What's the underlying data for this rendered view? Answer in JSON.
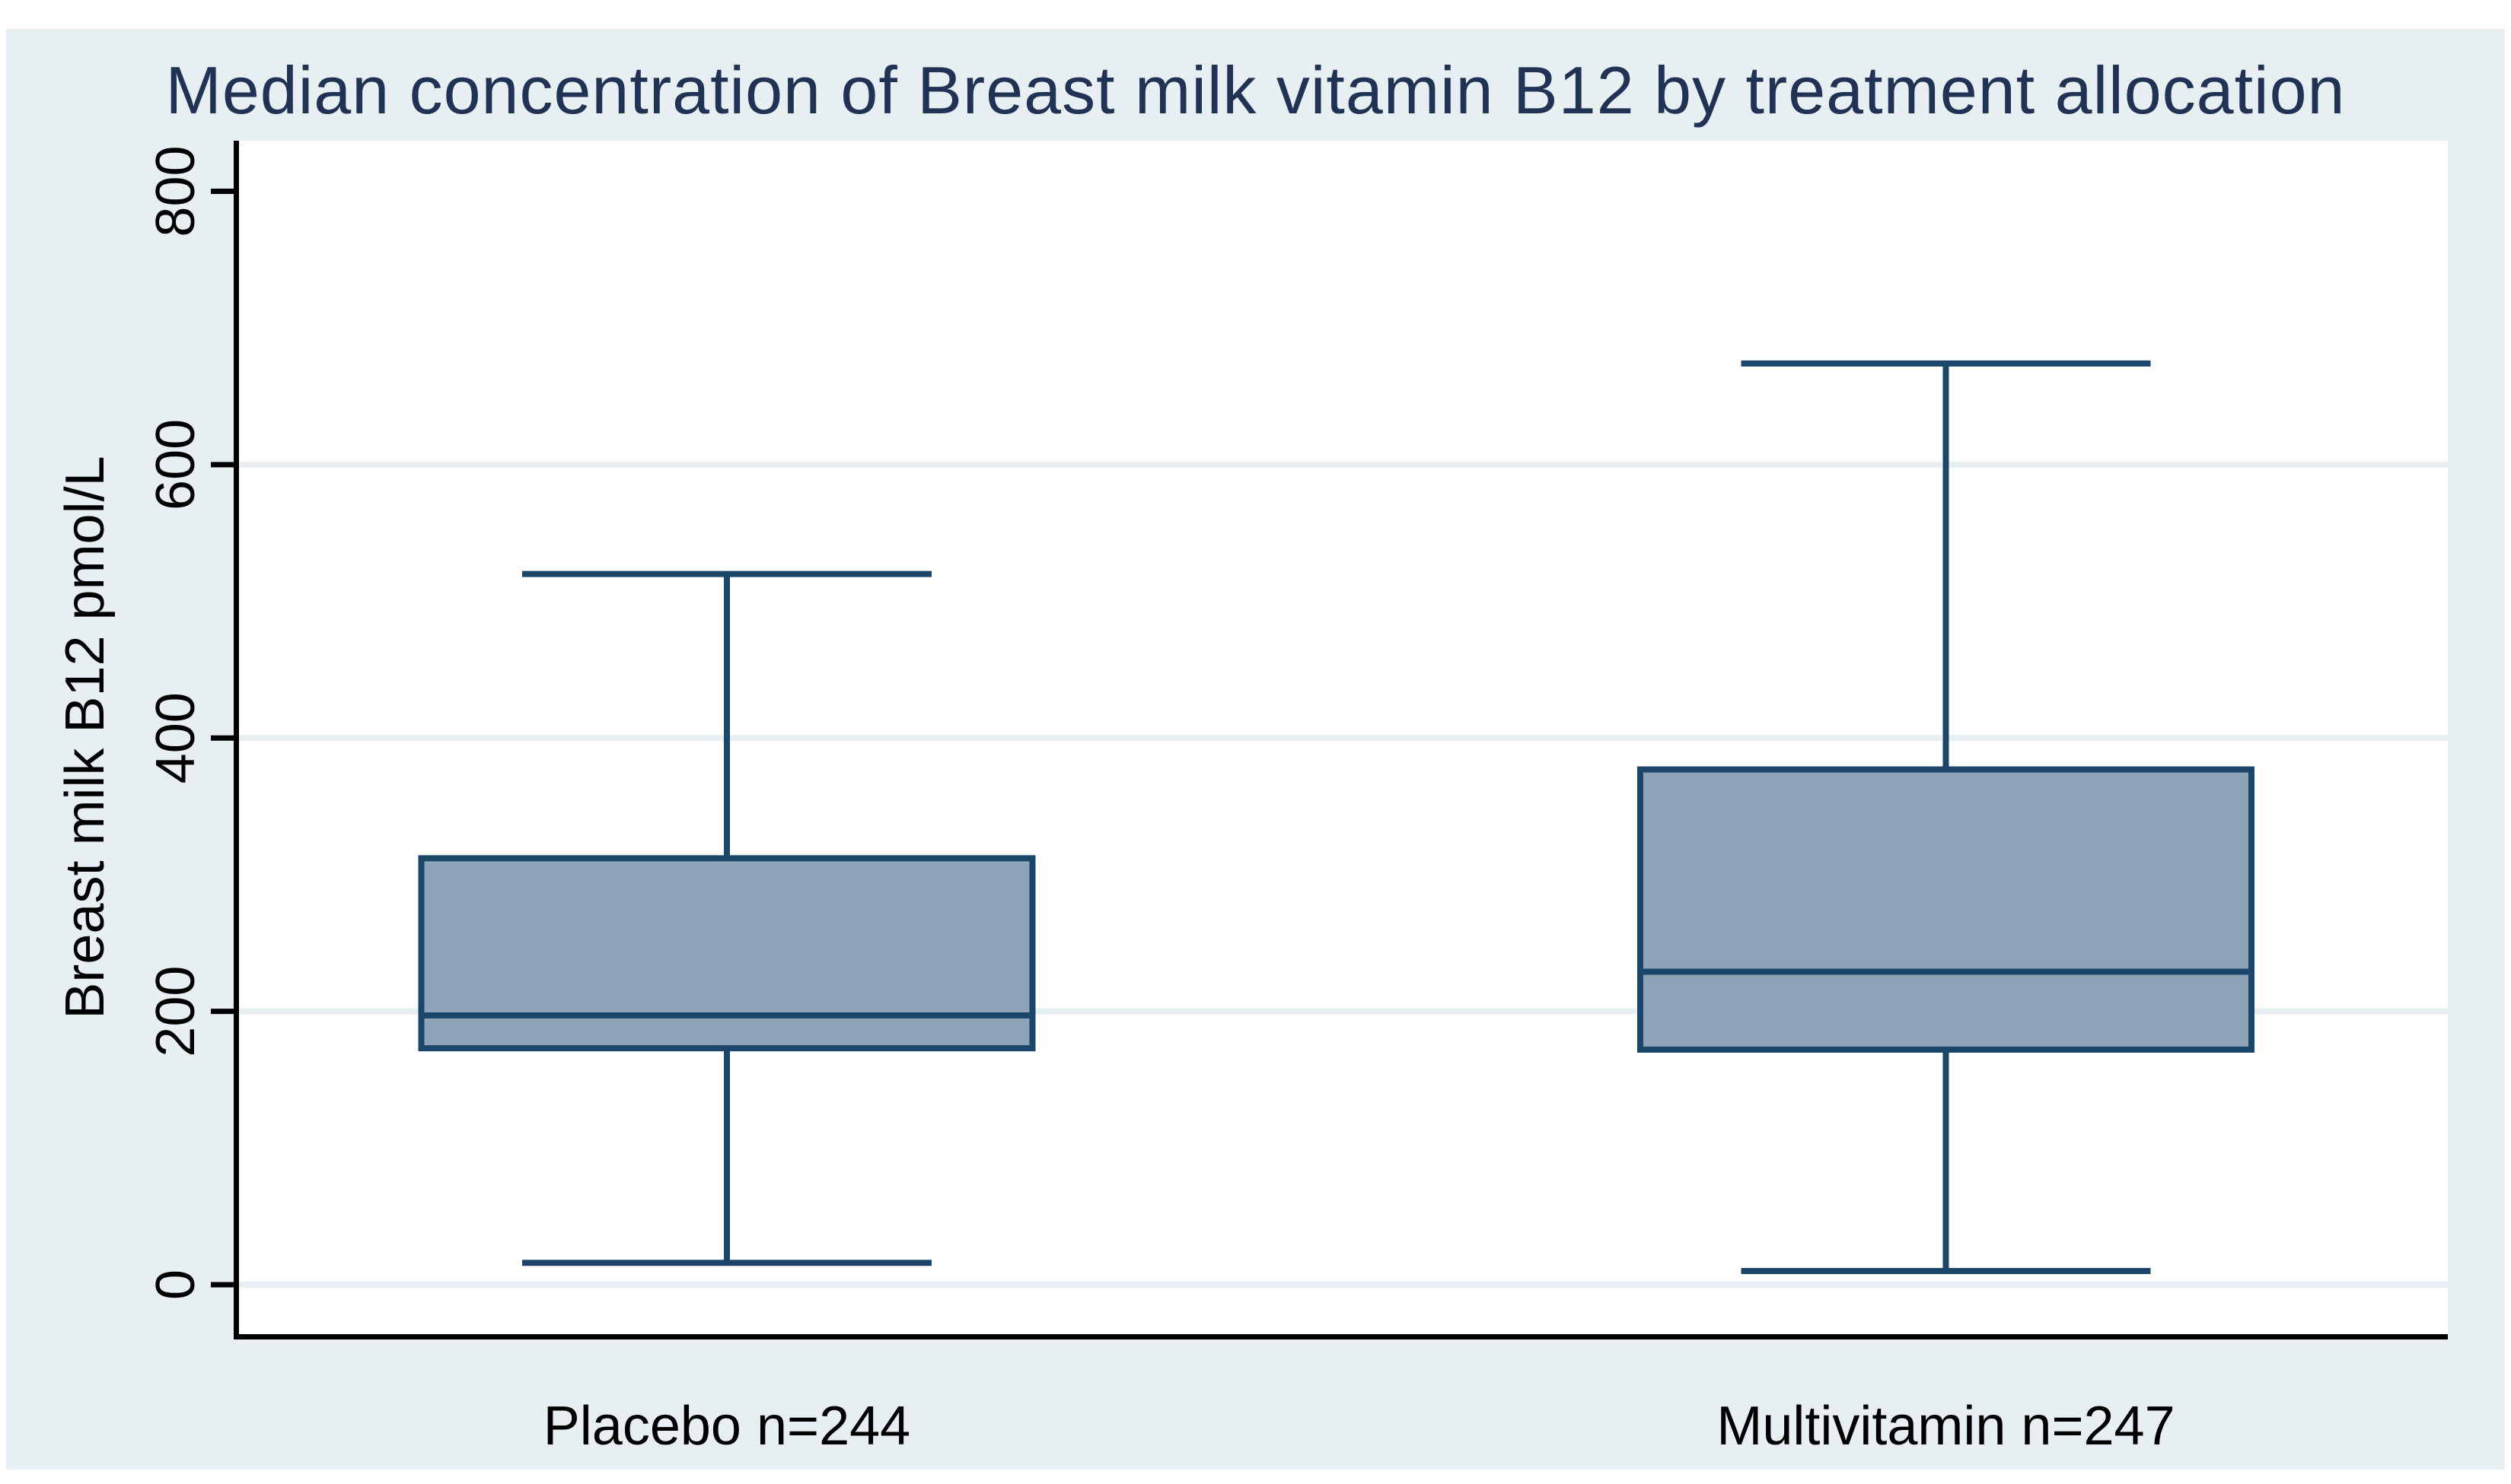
{
  "chart_data": {
    "type": "box",
    "title": "Median concentration of Breast milk vitamin B12 by treatment allocation",
    "ylabel": "Breast milk B12 pmol/L",
    "xlabel": "",
    "ylim": [
      0,
      800
    ],
    "yticks": [
      0,
      200,
      400,
      600,
      800
    ],
    "grid": true,
    "legend": false,
    "categories": [
      "Placebo n=244",
      "Multivitamin n=247"
    ],
    "series": [
      {
        "name": "Placebo n=244",
        "group": "Placebo",
        "n": 244,
        "whisker_low": 16,
        "q1": 173,
        "median": 197,
        "q3": 312,
        "whisker_high": 520
      },
      {
        "name": "Multivitamin n=247",
        "group": "Multivitamin",
        "n": 247,
        "whisker_low": 10,
        "q1": 172,
        "median": 229,
        "q3": 377,
        "whisker_high": 674
      }
    ]
  },
  "colors": {
    "title": "#203354",
    "text": "#000000",
    "axis": "#000000",
    "background": "#e8eff2",
    "plot_background": "#ffffff",
    "gridline": "#e8eff2",
    "box_fill": "#8da3b8",
    "box_border": "#1c4669"
  }
}
